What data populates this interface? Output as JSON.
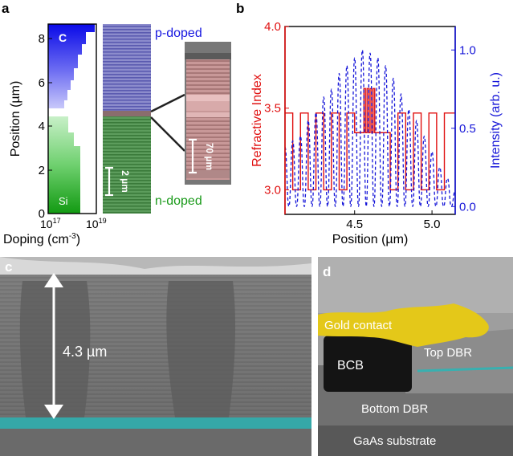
{
  "panels": {
    "a": {
      "letter": "a",
      "ylabel": "Position (µm)",
      "xlabel": "Doping (cm",
      "xlabel_exp": "-3",
      "xlabel_end": ")",
      "yticks": [
        "0",
        "2",
        "4",
        "6",
        "8"
      ],
      "xticks": [
        {
          "base": "10",
          "exp": "17"
        },
        {
          "base": "10",
          "exp": "19"
        }
      ],
      "carbon_label": "C",
      "silicon_label": "Si",
      "p_label": "p-doped",
      "n_label": "n-doped",
      "scale_2um": "2 µm",
      "scale_70nm": "70 µm",
      "colors": {
        "p": "#1515e0",
        "n": "#1a9a1a"
      }
    },
    "b": {
      "letter": "b",
      "y_left_label": "Refractive Index",
      "y_right_label": "Intensity (arb. u.)",
      "xlabel": "Position (µm)",
      "left_ticks": [
        "3.0",
        "3.5",
        "4.0"
      ],
      "right_ticks": [
        "0.0",
        "0.5",
        "1.0"
      ],
      "x_ticks": [
        "4.5",
        "5.0"
      ],
      "colors": {
        "index": "#e01010",
        "intensity": "#1515d8"
      }
    },
    "c": {
      "letter": "c",
      "dimension": "4.3 µm"
    },
    "d": {
      "letter": "d",
      "gold_contact": "Gold contact",
      "bcb": "BCB",
      "top_dbr": "Top DBR",
      "bottom_dbr": "Bottom DBR",
      "substrate": "GaAs substrate"
    }
  },
  "chart_data": [
    {
      "type": "area",
      "panel": "a",
      "xlabel": "Doping (cm-3)",
      "ylabel": "Position (µm)",
      "xscale": "log",
      "xlim": [
        1e+17,
        1e+19
      ],
      "ylim": [
        0,
        8.7
      ],
      "series": [
        {
          "name": "C",
          "y": [
            4.8,
            5.2,
            5.6,
            6.0,
            6.4,
            6.8,
            7.2,
            7.6,
            8.0,
            8.2,
            8.5
          ],
          "x": [
            1.4e+18,
            1.5e+18,
            1.7e+18,
            1.9e+18,
            2.2e+18,
            2.5e+18,
            2.9e+18,
            3.4e+18,
            4.2e+18,
            5.5e+18,
            1e+19
          ]
        },
        {
          "name": "Si",
          "y": [
            0.0,
            3.0,
            3.6,
            4.2,
            4.6
          ],
          "x": [
            3.2e+18,
            3.2e+18,
            2.6e+18,
            2.1e+18,
            1.7e+18
          ]
        }
      ]
    },
    {
      "type": "line",
      "panel": "b",
      "xlabel": "Position (µm)",
      "ylabel": "Refractive Index",
      "ylabel_right": "Intensity (arb. u.)",
      "xlim": [
        4.05,
        5.15
      ],
      "ylim": [
        2.85,
        4.0
      ],
      "ylim_right": [
        -0.05,
        1.15
      ],
      "series": [
        {
          "name": "Refractive Index",
          "axis": "left",
          "step": true,
          "x": [
            4.05,
            4.1,
            4.15,
            4.2,
            4.25,
            4.3,
            4.35,
            4.4,
            4.45,
            4.5,
            4.56,
            4.57,
            4.58,
            4.59,
            4.6,
            4.61,
            4.62,
            4.63,
            4.64,
            4.73,
            4.78,
            4.83,
            4.88,
            4.93,
            4.98,
            5.03,
            5.08,
            5.15
          ],
          "y": [
            3.47,
            3.0,
            3.47,
            3.0,
            3.47,
            3.0,
            3.47,
            3.0,
            3.47,
            3.35,
            3.62,
            3.35,
            3.62,
            3.35,
            3.62,
            3.35,
            3.62,
            3.35,
            3.35,
            3.0,
            3.47,
            3.0,
            3.47,
            3.0,
            3.47,
            3.0,
            3.47,
            3.47
          ]
        },
        {
          "name": "Intensity",
          "axis": "right",
          "dashed": true,
          "x": [
            4.05,
            4.075,
            4.1,
            4.125,
            4.15,
            4.175,
            4.2,
            4.225,
            4.25,
            4.275,
            4.3,
            4.325,
            4.35,
            4.375,
            4.4,
            4.425,
            4.45,
            4.475,
            4.5,
            4.525,
            4.55,
            4.575,
            4.6,
            4.625,
            4.65,
            4.675,
            4.7,
            4.725,
            4.75,
            4.775,
            4.8,
            4.825,
            4.85,
            4.875,
            4.9,
            4.925,
            4.95,
            4.975,
            5.0,
            5.025,
            5.05,
            5.075,
            5.1,
            5.125,
            5.15
          ],
          "y": [
            0.38,
            0.0,
            0.42,
            0.0,
            0.45,
            0.0,
            0.55,
            0.0,
            0.6,
            0.0,
            0.7,
            0.0,
            0.75,
            0.0,
            0.85,
            0.0,
            0.9,
            0.0,
            0.95,
            0.0,
            1.0,
            0.0,
            0.98,
            0.0,
            0.95,
            0.0,
            0.9,
            0.0,
            0.82,
            0.0,
            0.72,
            0.0,
            0.62,
            0.0,
            0.55,
            0.0,
            0.45,
            0.0,
            0.35,
            0.0,
            0.25,
            0.0,
            0.18,
            0.0,
            0.1
          ]
        }
      ]
    }
  ]
}
